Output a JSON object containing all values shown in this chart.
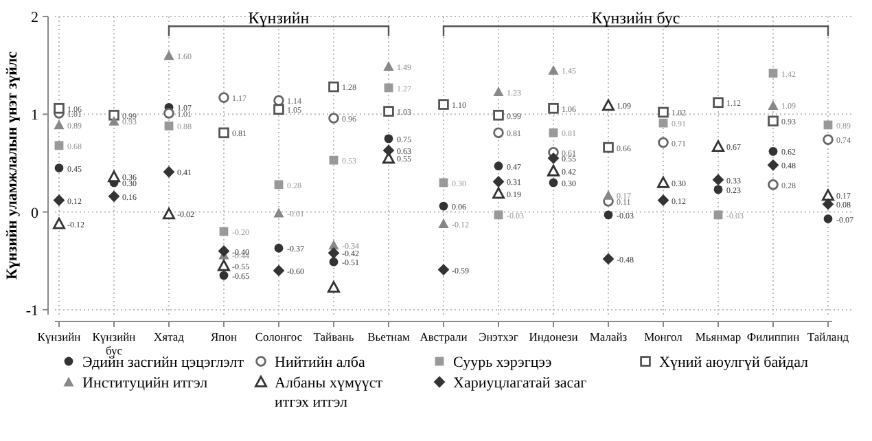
{
  "chart_data": {
    "type": "scatter",
    "ylabel": "Күнзийн уламжлалын үнэт зүйлс",
    "categories": [
      "Күнзийн",
      "Күнзийн бус",
      "Хятад",
      "Япон",
      "Солонгос",
      "Тайвань",
      "Вьетнам",
      "Австрали",
      "Энэтхэг",
      "Индонези",
      "Малайз",
      "Монгол",
      "Мьянмар",
      "Филиппин",
      "Тайланд"
    ],
    "ylim": [
      -1.05,
      2
    ],
    "yticks": [
      -1,
      0,
      1,
      2
    ],
    "grid": true,
    "legend": "bottom",
    "annotations": [
      "Күнзийн",
      "Күнзийн бус"
    ],
    "series": [
      {
        "name": "Эдийн засгийн цэцэглэлт",
        "color": "#333333",
        "marker": "circle",
        "values": [
          0.45,
          0.3,
          1.07,
          -0.65,
          -0.37,
          -0.51,
          0.75,
          0.06,
          0.47,
          0.3,
          -0.03,
          null,
          0.23,
          0.62,
          -0.07
        ],
        "value_labels": [
          "0.45",
          "0.30",
          "1.07",
          "-0.65",
          "-0.37",
          "-0.51",
          "0.75",
          "0.06",
          "0.47",
          "0.30",
          "-0.03",
          null,
          "0.23",
          "0.62",
          "-0.07"
        ]
      },
      {
        "name": "Нийтийн алба",
        "color": "#666666",
        "marker": "circle-open",
        "values": [
          1.01,
          null,
          1.01,
          1.17,
          1.14,
          0.96,
          null,
          null,
          0.81,
          0.61,
          0.11,
          0.71,
          null,
          0.28,
          0.74
        ],
        "value_labels": [
          "1.01",
          null,
          "1.01",
          "1.17",
          "1.14",
          "0.96",
          null,
          null,
          "0.81",
          "0.61",
          "0.11",
          "0.71",
          null,
          "0.28",
          "0.74"
        ]
      },
      {
        "name": "Суурь хэрэгцээ",
        "color": "#999999",
        "marker": "square",
        "values": [
          0.68,
          null,
          0.88,
          -0.2,
          0.28,
          0.53,
          1.27,
          0.3,
          -0.03,
          0.81,
          null,
          0.91,
          -0.03,
          1.42,
          0.89
        ],
        "value_labels": [
          "0.68",
          null,
          "0.88",
          "-0.20",
          "0.28",
          "0.53",
          "1.27",
          "0.30",
          "-0.03",
          "0.81",
          null,
          "0.91",
          "-0.03",
          "1.42",
          "0.89"
        ]
      },
      {
        "name": "Хүний аюулгүй байдал",
        "color": "#555555",
        "marker": "square-open",
        "values": [
          1.06,
          0.99,
          null,
          0.81,
          1.05,
          1.28,
          1.03,
          1.1,
          0.99,
          1.06,
          0.66,
          1.02,
          1.12,
          0.93,
          null
        ],
        "value_labels": [
          "1.06",
          "0.99",
          null,
          "0.81",
          "1.05",
          "1.28",
          "1.03",
          "1.10",
          "0.99",
          "1.06",
          "0.66",
          "1.02",
          "1.12",
          "0.93",
          null
        ]
      },
      {
        "name": "Институцийн итгэл",
        "color": "#888888",
        "marker": "triangle",
        "values": [
          0.89,
          0.93,
          1.6,
          -0.44,
          -0.01,
          -0.34,
          1.49,
          -0.12,
          1.23,
          1.45,
          0.17,
          null,
          null,
          1.09,
          null
        ],
        "value_labels": [
          "0.89",
          "0.93",
          "1.60",
          "-0.44",
          "-0.01",
          "-0.34",
          "1.49",
          "-0.12",
          "1.23",
          "1.45",
          "0.17",
          null,
          null,
          "1.09",
          null
        ]
      },
      {
        "name": "Албаны хүмүүст итгэх итгэл",
        "color": "#333333",
        "marker": "triangle-open",
        "values": [
          -0.12,
          0.36,
          -0.02,
          -0.55,
          null,
          -0.77,
          0.55,
          null,
          0.19,
          0.42,
          1.09,
          0.3,
          0.67,
          null,
          0.17
        ],
        "value_labels": [
          "-0.12",
          "0.36",
          "-0.02",
          "-0.55",
          null,
          null,
          "0.55",
          null,
          "0.19",
          "0.42",
          "1.09",
          "0.30",
          "0.67",
          null,
          "0.17"
        ]
      },
      {
        "name": "Хариуцлагатай засаг",
        "color": "#333333",
        "marker": "diamond",
        "values": [
          0.12,
          0.16,
          0.41,
          -0.4,
          -0.6,
          -0.42,
          0.63,
          -0.59,
          0.31,
          0.55,
          -0.48,
          0.12,
          0.33,
          0.48,
          0.08
        ],
        "value_labels": [
          "0.12",
          "0.16",
          "0.41",
          "-0.40",
          "-0.60",
          "-0.42",
          "0.63",
          "-0.59",
          "0.31",
          "0.55",
          "-0.48",
          "0.12",
          "0.33",
          "0.48",
          "0.08"
        ]
      }
    ]
  }
}
